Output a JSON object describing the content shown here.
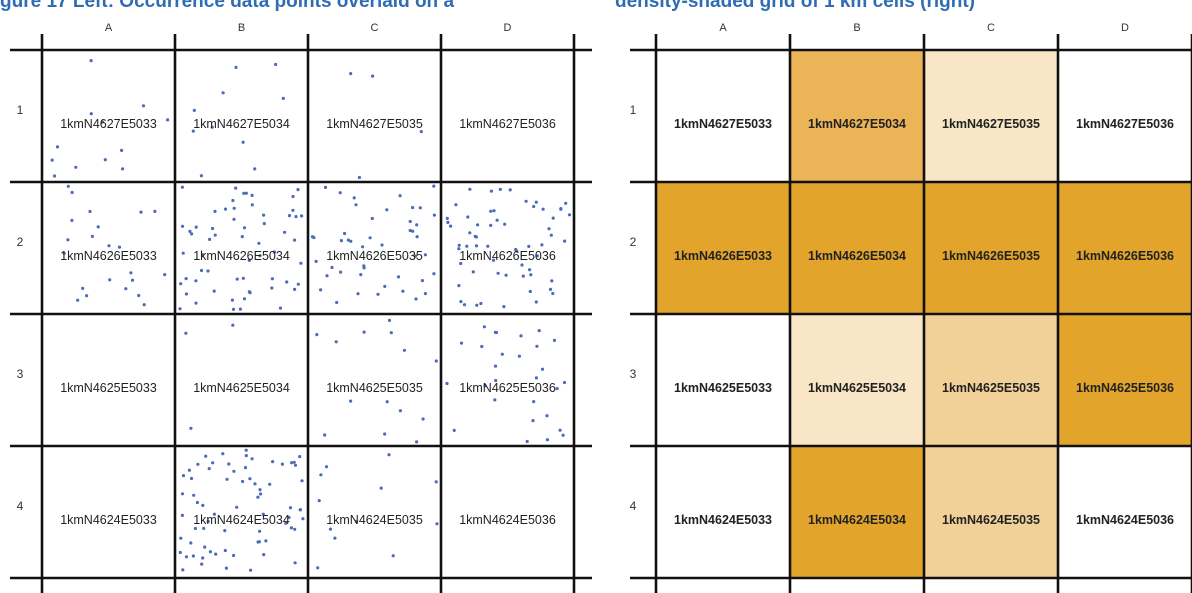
{
  "heading": {
    "left_text": "gure 17 Left: Occurrence data points overlaid on a",
    "right_text": "density-shaded grid of 1 km cells (right)"
  },
  "colors": {
    "heading": "#2e6db4",
    "point": "#4a6db8",
    "grid": "#111111",
    "density_scale": [
      "#ffffff",
      "#f8e6c6",
      "#f2d199",
      "#ebb456",
      "#e2a42a"
    ]
  },
  "grid": {
    "columns": [
      "A",
      "B",
      "C",
      "D"
    ],
    "rows": [
      "1",
      "2",
      "3",
      "4"
    ],
    "cells": [
      [
        "1kmN4627E5033",
        "1kmN4627E5034",
        "1kmN4627E5035",
        "1kmN4627E5036"
      ],
      [
        "1kmN4626E5033",
        "1kmN4626E5034",
        "1kmN4626E5035",
        "1kmN4626E5036"
      ],
      [
        "1kmN4625E5033",
        "1kmN4625E5034",
        "1kmN4625E5035",
        "1kmN4625E5036"
      ],
      [
        "1kmN4624E5033",
        "1kmN4624E5034",
        "1kmN4624E5035",
        "1kmN4624E5036"
      ]
    ]
  },
  "density": {
    "levels": [
      [
        0,
        3,
        1,
        0
      ],
      [
        4,
        4,
        4,
        4
      ],
      [
        0,
        1,
        2,
        4
      ],
      [
        0,
        4,
        2,
        0
      ]
    ]
  },
  "points_per_cell": [
    [
      12,
      10,
      4,
      0
    ],
    [
      22,
      60,
      45,
      60
    ],
    [
      0,
      3,
      14,
      28
    ],
    [
      0,
      70,
      12,
      0
    ]
  ]
}
